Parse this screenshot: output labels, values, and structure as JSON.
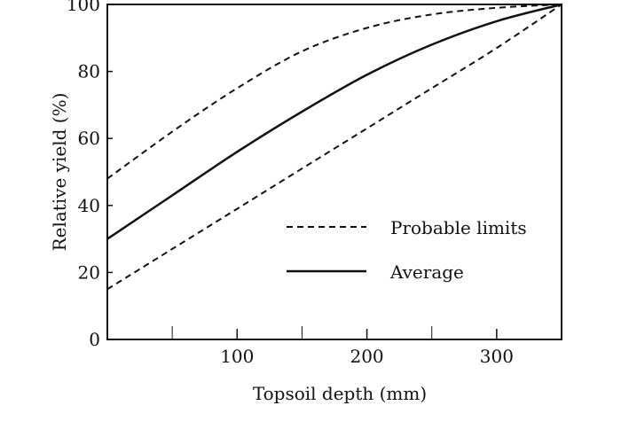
{
  "chart_data": {
    "type": "line",
    "xlabel": "Topsoil depth (mm)",
    "ylabel": "Relative yield (%)",
    "xlim": [
      0,
      350
    ],
    "ylim": [
      0,
      100
    ],
    "x_ticks": [
      100,
      200,
      300
    ],
    "x_minor_ticks": [
      50,
      150,
      250
    ],
    "y_ticks": [
      0,
      20,
      40,
      60,
      80,
      100
    ],
    "grid": false,
    "legend_position": "center-right",
    "series": [
      {
        "name": "Probable limits",
        "style": "dashed",
        "color": "#111111",
        "points": [
          [
            0,
            48
          ],
          [
            50,
            62
          ],
          [
            100,
            75
          ],
          [
            150,
            86
          ],
          [
            200,
            93
          ],
          [
            250,
            97
          ],
          [
            300,
            99
          ],
          [
            350,
            100
          ]
        ]
      },
      {
        "name": "Probable limits",
        "style": "dashed",
        "color": "#111111",
        "points": [
          [
            0,
            15
          ],
          [
            50,
            27
          ],
          [
            100,
            39
          ],
          [
            150,
            51
          ],
          [
            200,
            63
          ],
          [
            250,
            75
          ],
          [
            300,
            87
          ],
          [
            350,
            100
          ]
        ]
      },
      {
        "name": "Average",
        "style": "solid",
        "color": "#111111",
        "points": [
          [
            0,
            30
          ],
          [
            50,
            43
          ],
          [
            100,
            56
          ],
          [
            150,
            68
          ],
          [
            200,
            79
          ],
          [
            250,
            88
          ],
          [
            300,
            95
          ],
          [
            350,
            100
          ]
        ]
      }
    ],
    "legend": [
      {
        "label": "Probable limits",
        "style": "dashed"
      },
      {
        "label": "Average",
        "style": "solid"
      }
    ]
  }
}
